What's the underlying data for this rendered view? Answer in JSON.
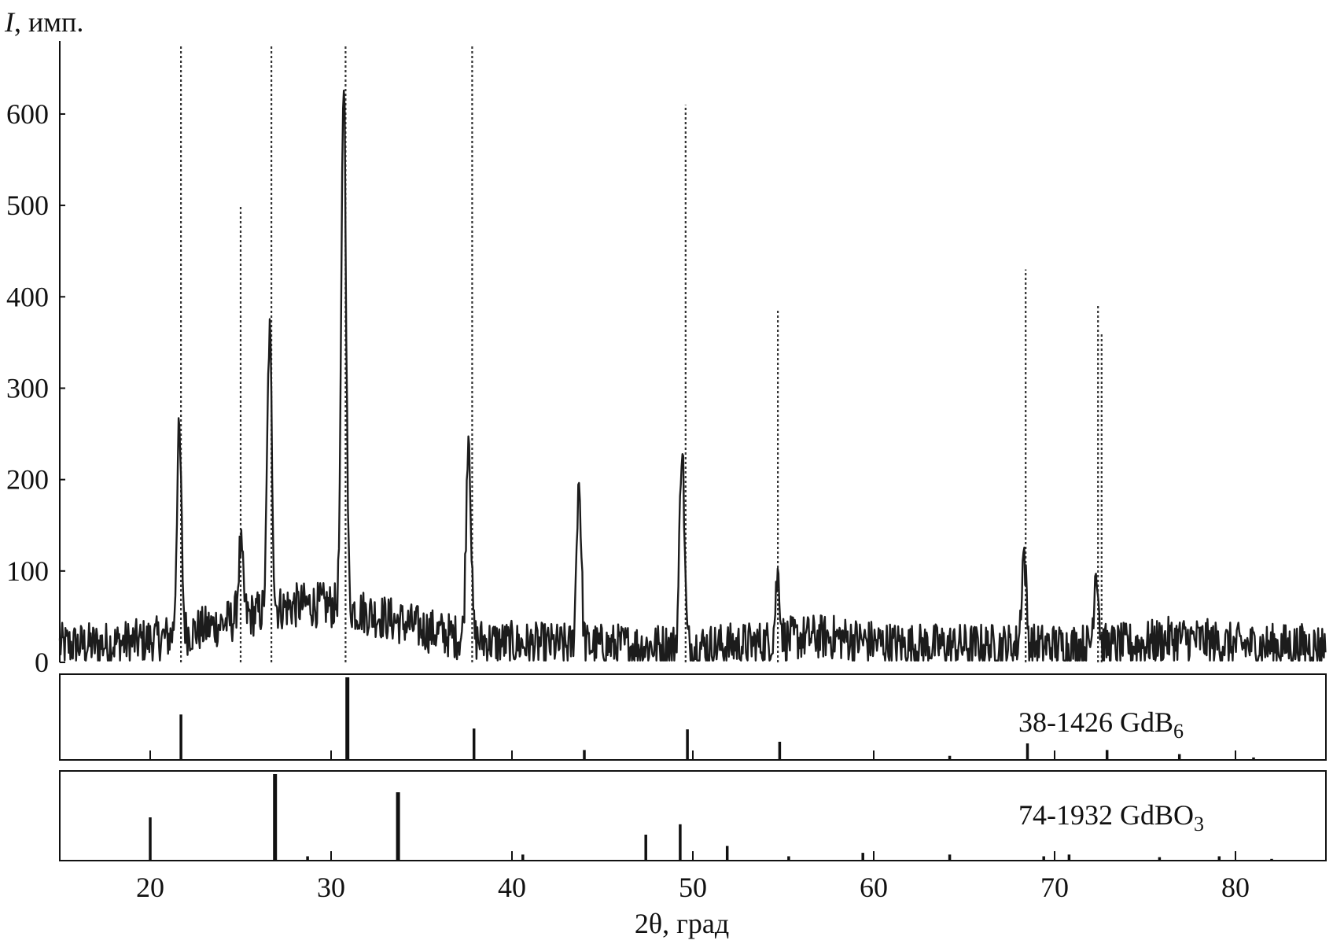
{
  "chart_data": [
    {
      "type": "line",
      "ylabel_symbol": "I",
      "ylabel_unit": ", имп.",
      "xlabel": "2θ, град",
      "xlim": [
        15,
        85
      ],
      "ylim": [
        0,
        680
      ],
      "y_ticks": [
        0,
        100,
        200,
        300,
        400,
        500,
        600
      ],
      "x_ticks": [
        20,
        30,
        40,
        50,
        60,
        70,
        80
      ],
      "grid": false,
      "peaks": [
        {
          "x": 21.6,
          "y": 250
        },
        {
          "x": 25.0,
          "y": 125
        },
        {
          "x": 26.6,
          "y": 360
        },
        {
          "x": 30.7,
          "y": 640
        },
        {
          "x": 37.6,
          "y": 255
        },
        {
          "x": 43.7,
          "y": 200
        },
        {
          "x": 49.4,
          "y": 240
        },
        {
          "x": 54.7,
          "y": 95
        },
        {
          "x": 68.3,
          "y": 120
        },
        {
          "x": 72.3,
          "y": 105
        }
      ],
      "reference_lines": [
        {
          "x": 21.7,
          "top": 675
        },
        {
          "x": 25.0,
          "top": 500
        },
        {
          "x": 26.7,
          "top": 675
        },
        {
          "x": 30.8,
          "top": 675
        },
        {
          "x": 37.8,
          "top": 675
        },
        {
          "x": 49.6,
          "top": 610
        },
        {
          "x": 54.7,
          "top": 385
        },
        {
          "x": 68.4,
          "top": 430
        },
        {
          "x": 72.4,
          "top": 390
        },
        {
          "x": 72.6,
          "top": 360
        }
      ]
    },
    {
      "type": "bar",
      "label_main": "38-1426 GdB",
      "label_sub": "6",
      "x": [
        21.7,
        30.9,
        37.9,
        44.0,
        49.7,
        54.8,
        64.2,
        68.5,
        72.9,
        76.9,
        81.0
      ],
      "values": [
        55,
        100,
        38,
        12,
        37,
        22,
        5,
        20,
        12,
        7,
        3
      ]
    },
    {
      "type": "bar",
      "label_main": "74-1932 GdBO",
      "label_sub": "3",
      "x": [
        20.0,
        26.9,
        28.7,
        33.7,
        40.6,
        47.4,
        49.3,
        51.9,
        55.3,
        59.4,
        64.2,
        69.4,
        70.8,
        75.8,
        79.1,
        82.0
      ],
      "values": [
        50,
        100,
        5,
        79,
        7,
        30,
        42,
        17,
        5,
        9,
        7,
        5,
        7,
        4,
        5,
        2
      ]
    }
  ]
}
